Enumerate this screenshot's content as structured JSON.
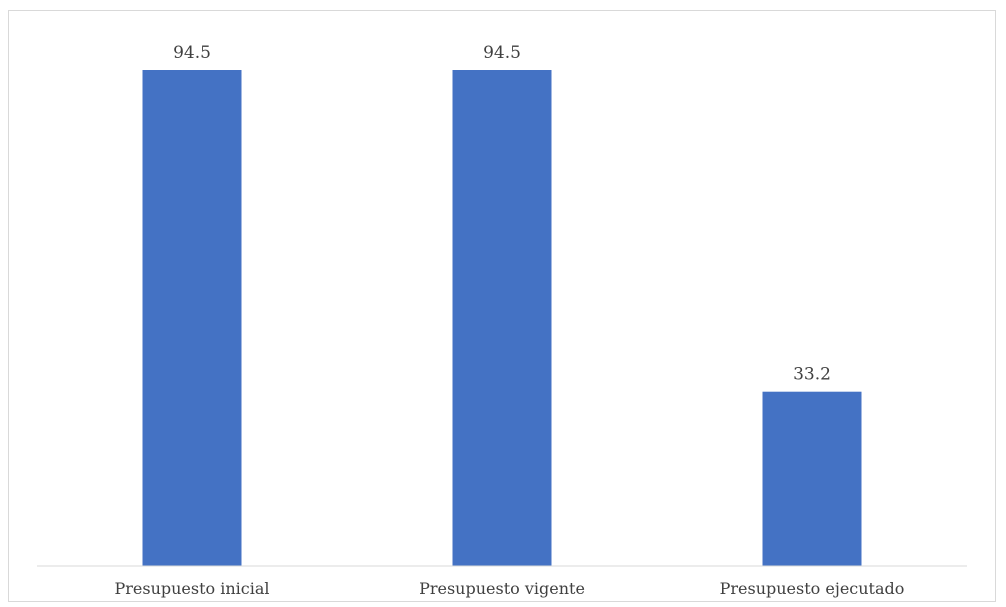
{
  "chart_data": {
    "type": "bar",
    "title": "",
    "xlabel": "",
    "ylabel": "",
    "categories": [
      "Presupuesto inicial",
      "Presupuesto vigente",
      "Presupuesto ejecutado"
    ],
    "values": [
      94.5,
      94.5,
      33.2
    ],
    "data_labels": [
      "94.5",
      "94.5",
      "33.2"
    ],
    "ylim": [
      0,
      100
    ],
    "grid": false,
    "legend": "none",
    "bar_color": "#4472c4"
  }
}
